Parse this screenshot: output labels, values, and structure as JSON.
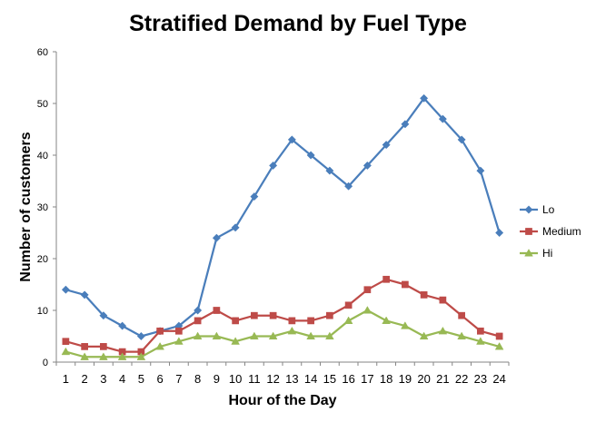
{
  "chart_data": {
    "type": "line",
    "title": "Stratified Demand by Fuel Type",
    "xlabel": "Hour of the Day",
    "ylabel": "Number of customers",
    "x": [
      "1",
      "2",
      "3",
      "4",
      "5",
      "6",
      "7",
      "8",
      "9",
      "10",
      "11",
      "12",
      "13",
      "14",
      "15",
      "16",
      "17",
      "18",
      "19",
      "20",
      "21",
      "22",
      "23",
      "24"
    ],
    "ylim": [
      0,
      60
    ],
    "yticks": [
      "0",
      "10",
      "20",
      "30",
      "40",
      "50",
      "60"
    ],
    "grid": false,
    "legend_position": "right",
    "series": [
      {
        "name": "Lo",
        "color": "#4a7ebb",
        "marker": "diamond",
        "values": [
          14,
          13,
          9,
          7,
          5,
          6,
          7,
          10,
          24,
          26,
          32,
          38,
          43,
          40,
          37,
          34,
          38,
          42,
          46,
          51,
          47,
          43,
          37,
          25
        ]
      },
      {
        "name": "Medium",
        "color": "#be4b48",
        "marker": "square",
        "values": [
          4,
          3,
          3,
          2,
          2,
          6,
          6,
          8,
          10,
          8,
          9,
          9,
          8,
          8,
          9,
          11,
          14,
          16,
          15,
          13,
          12,
          9,
          6,
          5
        ]
      },
      {
        "name": "Hi",
        "color": "#98b954",
        "marker": "triangle",
        "values": [
          2,
          1,
          1,
          1,
          1,
          3,
          4,
          5,
          5,
          4,
          5,
          5,
          6,
          5,
          5,
          8,
          10,
          8,
          7,
          5,
          6,
          5,
          4,
          3
        ]
      }
    ]
  }
}
